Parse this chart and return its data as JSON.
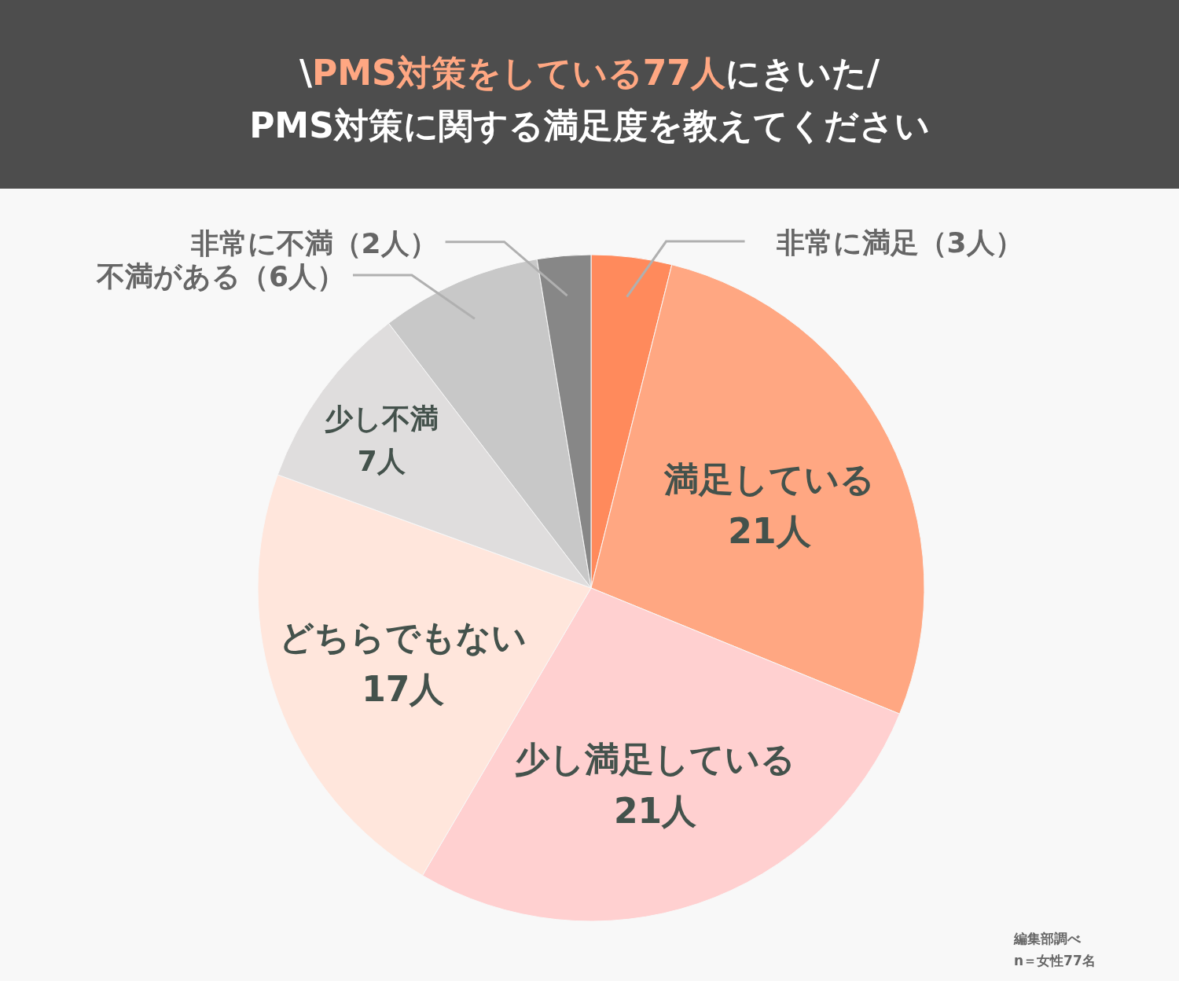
{
  "chart_data": {
    "type": "pie",
    "title": "\\**PMS対策をしている77人**にきいた/",
    "subtitle": "PMS対策に関する満足度を教えてください",
    "categories": [
      "非常に満足",
      "満足している",
      "少し満足している",
      "どちらでもない",
      "少し不満",
      "不満がある",
      "非常に不満"
    ],
    "values": [
      3,
      21,
      21,
      17,
      7,
      6,
      2
    ],
    "colors": [
      "#ff8a5c",
      "#ffa782",
      "#ffd0d0",
      "#ffe6dc",
      "#dfdddd",
      "#c8c8c8",
      "#878787"
    ],
    "value_labels": [
      "（3人）",
      "21人",
      "21人",
      "17人",
      "7人",
      "（6人）",
      "（2人）"
    ],
    "annotations": [
      "編集部調べ",
      "n＝女性77名"
    ]
  }
}
